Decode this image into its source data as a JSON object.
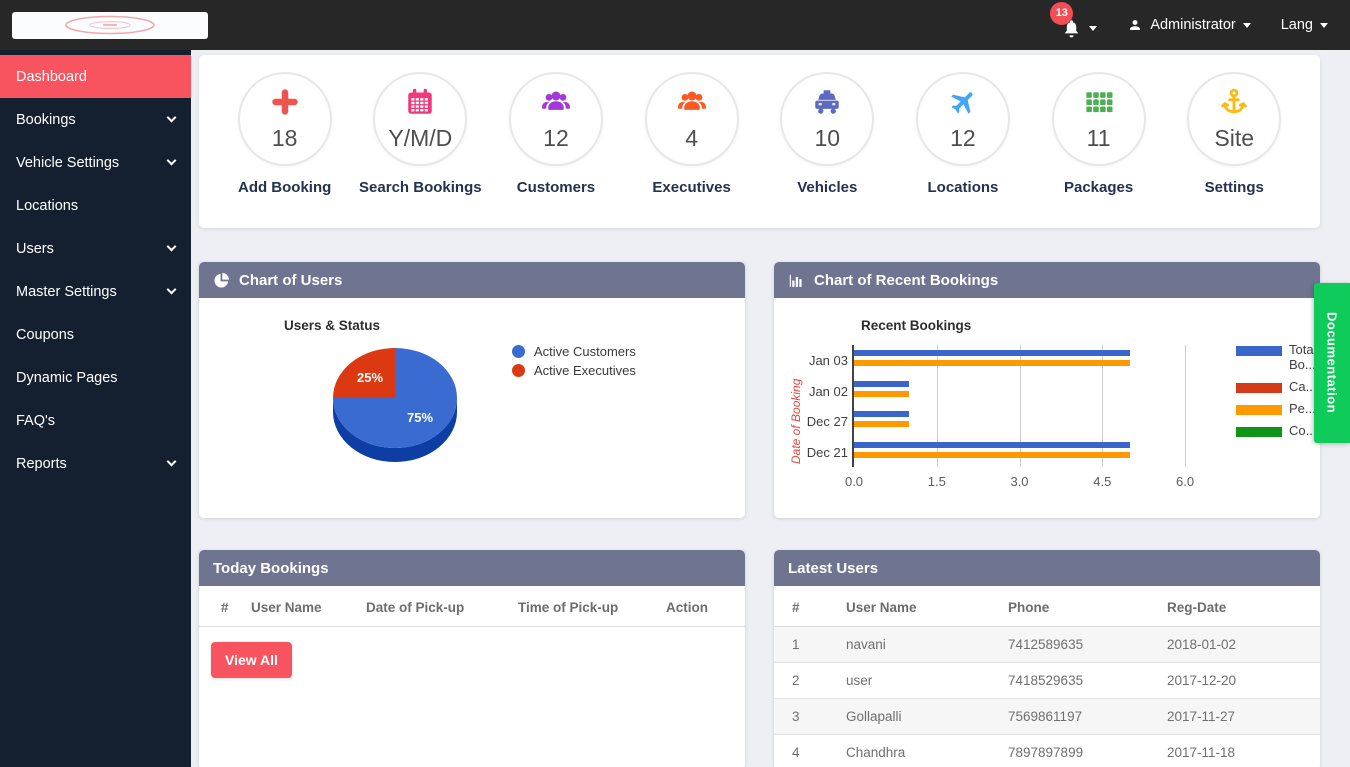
{
  "topbar": {
    "notification_count": "13",
    "admin_label": "Administrator",
    "lang_label": "Lang"
  },
  "sidebar": {
    "items": [
      {
        "label": "Dashboard",
        "active": true,
        "has_children": false
      },
      {
        "label": "Bookings",
        "active": false,
        "has_children": true
      },
      {
        "label": "Vehicle Settings",
        "active": false,
        "has_children": true
      },
      {
        "label": "Locations",
        "active": false,
        "has_children": false
      },
      {
        "label": "Users",
        "active": false,
        "has_children": true
      },
      {
        "label": "Master Settings",
        "active": false,
        "has_children": true
      },
      {
        "label": "Coupons",
        "active": false,
        "has_children": false
      },
      {
        "label": "Dynamic Pages",
        "active": false,
        "has_children": false
      },
      {
        "label": "FAQ's",
        "active": false,
        "has_children": false
      },
      {
        "label": "Reports",
        "active": false,
        "has_children": true
      }
    ]
  },
  "stats": [
    {
      "icon": "plus",
      "color": "#ef5350",
      "value": "18",
      "label": "Add Booking"
    },
    {
      "icon": "calendar",
      "color": "#f0397b",
      "value": "Y/M/D",
      "label": "Search Bookings"
    },
    {
      "icon": "users",
      "color": "#a238d8",
      "value": "12",
      "label": "Customers"
    },
    {
      "icon": "users",
      "color": "#ff5722",
      "value": "4",
      "label": "Executives"
    },
    {
      "icon": "taxi",
      "color": "#5c6bc0",
      "value": "10",
      "label": "Vehicles"
    },
    {
      "icon": "plane",
      "color": "#42a5f5",
      "value": "12",
      "label": "Locations"
    },
    {
      "icon": "grid",
      "color": "#4caf50",
      "value": "11",
      "label": "Packages"
    },
    {
      "icon": "anchor",
      "color": "#fdb913",
      "value": "Site",
      "label": "Settings"
    }
  ],
  "panels": {
    "users_chart": {
      "title": "Chart of Users"
    },
    "bookings_chart": {
      "title": "Chart of Recent Bookings"
    },
    "today_bookings": {
      "title": "Today Bookings",
      "columns": [
        "#",
        "User Name",
        "Date of Pick-up",
        "Time of Pick-up",
        "Action"
      ],
      "rows": [],
      "view_all_label": "View All"
    },
    "latest_users": {
      "title": "Latest Users",
      "columns": [
        "#",
        "User Name",
        "Phone",
        "Reg-Date"
      ],
      "rows": [
        [
          "1",
          "navani",
          "7412589635",
          "2018-01-02"
        ],
        [
          "2",
          "user",
          "7418529635",
          "2017-12-20"
        ],
        [
          "3",
          "Gollapalli",
          "7569861197",
          "2017-11-27"
        ],
        [
          "4",
          "Chandhra",
          "7897897899",
          "2017-11-18"
        ]
      ]
    }
  },
  "chart_data": [
    {
      "type": "pie",
      "title": "Users & Status",
      "labels": [
        "Active Customers",
        "Active Executives"
      ],
      "values": [
        75,
        25
      ],
      "value_labels": [
        "75%",
        "25%"
      ],
      "colors": [
        "#3a6bd0",
        "#dc3912"
      ],
      "legend_position": "right",
      "style_3d": true
    },
    {
      "type": "bar",
      "orientation": "horizontal",
      "title": "Recent Bookings",
      "xlabel": "",
      "ylabel": "Date of Booking",
      "categories": [
        "Jan 03",
        "Jan 02",
        "Dec 27",
        "Dec 21"
      ],
      "series": [
        {
          "name": "Total Bo...",
          "color": "#3a66cc",
          "values": [
            5,
            1,
            1,
            5
          ]
        },
        {
          "name": "Ca...",
          "color": "#d33a18",
          "values": [
            0,
            0,
            0,
            0
          ]
        },
        {
          "name": "Pe...",
          "color": "#ff9900",
          "values": [
            5,
            1,
            1,
            5
          ]
        },
        {
          "name": "Co...",
          "color": "#0f9618",
          "values": [
            0,
            0,
            0,
            0
          ]
        }
      ],
      "xticks": [
        "0.0",
        "1.5",
        "3.0",
        "4.5",
        "6.0"
      ],
      "xlim": [
        0,
        6.56
      ],
      "grid": true,
      "legend_position": "right"
    }
  ],
  "doc_tab": {
    "label": "Documentation",
    "color": "#0ecb5a"
  },
  "theme": {
    "accent": "#f8545f",
    "panel_header": "#6f7590",
    "topbar_bg": "#272727",
    "sidebar_bg": "#142030",
    "doc_green": "#0ecb5a",
    "page_bg": "#edeff4"
  }
}
